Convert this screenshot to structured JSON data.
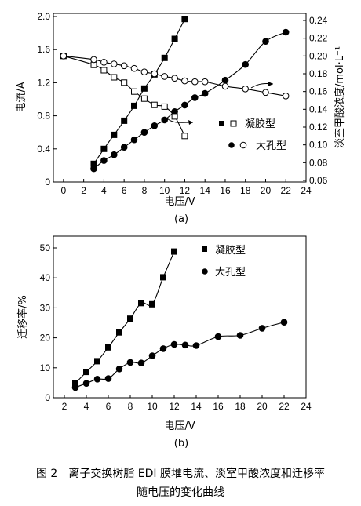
{
  "caption": {
    "line1": "图 2　离子交换树脂 EDI 膜堆电流、淡室甲酸浓度和迁移率",
    "line2": "随电压的变化曲线"
  },
  "chart_data": [
    {
      "type": "line",
      "panel_label": "(a)",
      "xlabel": "电压/V",
      "ylabel_left": "电流/A",
      "ylabel_right": "淡室甲酸浓度/mol·L⁻¹",
      "xlim": [
        -1,
        24
      ],
      "ylim_left": [
        0,
        2.0
      ],
      "ylim_right": [
        0.06,
        0.24
      ],
      "x_ticks": [
        0,
        2,
        4,
        6,
        8,
        10,
        12,
        14,
        16,
        18,
        20,
        22,
        24
      ],
      "yleft_ticks": [
        "0",
        "0.4",
        "0.8",
        "1.2",
        "1.6",
        "2.0"
      ],
      "yright_ticks": [
        "0.06",
        "0.08",
        "0.10",
        "0.12",
        "0.14",
        "0.16",
        "0.18",
        "0.20",
        "0.22",
        "0.24"
      ],
      "legend": [
        {
          "label": "凝胶型",
          "markers": [
            "filled-square",
            "open-square"
          ]
        },
        {
          "label": "大孔型",
          "markers": [
            "filled-circle",
            "open-circle"
          ]
        }
      ],
      "series": [
        {
          "axis": "left",
          "marker": "filled-square",
          "x": [
            3,
            4,
            5,
            6,
            7,
            8,
            9,
            10,
            11,
            12
          ],
          "y": [
            0.22,
            0.4,
            0.57,
            0.74,
            0.92,
            1.13,
            1.3,
            1.5,
            1.73,
            1.97
          ]
        },
        {
          "axis": "left",
          "marker": "filled-circle",
          "x": [
            3,
            4,
            5,
            6,
            7,
            8,
            9,
            10,
            11,
            12,
            13,
            14,
            16,
            18,
            20,
            22
          ],
          "y": [
            0.16,
            0.26,
            0.33,
            0.42,
            0.51,
            0.6,
            0.68,
            0.75,
            0.85,
            0.93,
            1.02,
            1.07,
            1.23,
            1.42,
            1.7,
            1.81
          ]
        },
        {
          "axis": "right",
          "marker": "open-square",
          "x": [
            0,
            3,
            4,
            5,
            6,
            7,
            8,
            9,
            10,
            11,
            12
          ],
          "y": [
            0.2,
            0.19,
            0.184,
            0.176,
            0.17,
            0.16,
            0.152,
            0.145,
            0.143,
            0.132,
            0.11
          ]
        },
        {
          "axis": "right",
          "marker": "open-circle",
          "x": [
            0,
            3,
            4,
            5,
            6,
            7,
            8,
            9,
            10,
            11,
            12,
            13,
            14,
            16,
            18,
            20,
            22
          ],
          "y": [
            0.2,
            0.196,
            0.193,
            0.191,
            0.189,
            0.186,
            0.182,
            0.18,
            0.177,
            0.175,
            0.172,
            0.171,
            0.171,
            0.166,
            0.163,
            0.159,
            0.155
          ]
        }
      ]
    },
    {
      "type": "line",
      "panel_label": "(b)",
      "xlabel": "电压/V",
      "ylabel": "迁移率/%",
      "xlim": [
        1,
        24
      ],
      "ylim": [
        0,
        50
      ],
      "x_ticks": [
        2,
        4,
        6,
        8,
        10,
        12,
        14,
        16,
        18,
        20,
        22,
        24
      ],
      "y_ticks": [
        "0",
        "10",
        "20",
        "30",
        "40",
        "50"
      ],
      "legend": [
        {
          "label": "凝胶型",
          "marker": "filled-square"
        },
        {
          "label": "大孔型",
          "marker": "filled-circle"
        }
      ],
      "series": [
        {
          "marker": "filled-square",
          "x": [
            3,
            4,
            5,
            6,
            7,
            8,
            9,
            10,
            11,
            12
          ],
          "y": [
            4.8,
            8.6,
            12.2,
            16.8,
            21.8,
            26.4,
            31.6,
            31.2,
            40.2,
            48.8
          ]
        },
        {
          "marker": "filled-circle",
          "x": [
            3,
            4,
            5,
            6,
            7,
            8,
            9,
            10,
            11,
            12,
            13,
            14,
            16,
            18,
            20,
            22
          ],
          "y": [
            3.4,
            4.8,
            6.2,
            6.4,
            9.6,
            11.8,
            11.6,
            14.0,
            16.4,
            17.8,
            17.6,
            17.4,
            20.4,
            20.8,
            23.2,
            25.2
          ]
        }
      ]
    }
  ]
}
